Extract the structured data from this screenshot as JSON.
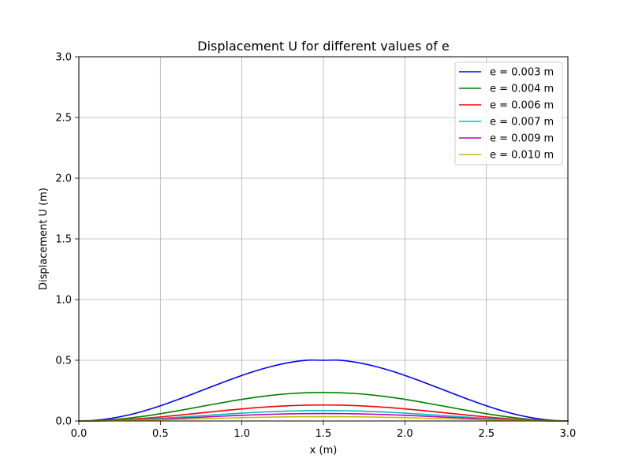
{
  "chart_data": {
    "type": "line",
    "title": "Displacement U for different values of e",
    "xlabel": "x (m)",
    "ylabel": "Displacement U (m)",
    "xlim": [
      0,
      3
    ],
    "ylim": [
      0,
      3
    ],
    "x_ticks": [
      "0.0",
      "0.5",
      "1.0",
      "1.5",
      "2.0",
      "2.5",
      "3.0"
    ],
    "y_ticks": [
      "0.0",
      "0.5",
      "1.0",
      "1.5",
      "2.0",
      "2.5",
      "3.0"
    ],
    "grid": true,
    "legend_position": "top-right",
    "x": [
      0,
      0.1,
      0.2,
      0.3,
      0.4,
      0.5,
      0.6,
      0.7,
      0.8,
      0.9,
      1.0,
      1.1,
      1.2,
      1.3,
      1.4,
      1.5,
      1.6,
      1.7,
      1.8,
      1.9,
      2.0,
      2.1,
      2.2,
      2.3,
      2.4,
      2.5,
      2.6,
      2.7,
      2.8,
      2.9,
      3.0
    ],
    "series": [
      {
        "name": "e = 0.003 m",
        "color": "#0000ff",
        "values": [
          0,
          0.0054,
          0.0216,
          0.0477,
          0.0827,
          0.125,
          0.1727,
          0.2236,
          0.2755,
          0.326,
          0.375,
          0.4186,
          0.4552,
          0.4831,
          0.5006,
          0.5,
          0.5006,
          0.4831,
          0.4552,
          0.4186,
          0.375,
          0.326,
          0.2755,
          0.2236,
          0.1727,
          0.125,
          0.0827,
          0.0477,
          0.0216,
          0.0054,
          0
        ]
      },
      {
        "name": "e = 0.004 m",
        "color": "#008000",
        "values": [
          0,
          0.0025,
          0.0103,
          0.0228,
          0.0395,
          0.0597,
          0.0824,
          0.1067,
          0.1315,
          0.1556,
          0.1781,
          0.1979,
          0.214,
          0.2256,
          0.2325,
          0.2348,
          0.2325,
          0.2256,
          0.214,
          0.1979,
          0.1781,
          0.1556,
          0.1315,
          0.1067,
          0.0824,
          0.0597,
          0.0395,
          0.0228,
          0.0103,
          0.0025,
          0
        ]
      },
      {
        "name": "e = 0.006 m",
        "color": "#ff0000",
        "values": [
          0,
          0.0014,
          0.0058,
          0.0128,
          0.0221,
          0.0334,
          0.0461,
          0.0597,
          0.0736,
          0.0871,
          0.0997,
          0.1108,
          0.1198,
          0.1263,
          0.1302,
          0.1315,
          0.1302,
          0.1263,
          0.1198,
          0.1108,
          0.0997,
          0.0871,
          0.0736,
          0.0597,
          0.0461,
          0.0334,
          0.0221,
          0.0128,
          0.0058,
          0.0014,
          0
        ]
      },
      {
        "name": "e = 0.007 m",
        "color": "#00bfbf",
        "values": [
          0,
          0.0009,
          0.0037,
          0.0083,
          0.0143,
          0.0217,
          0.03,
          0.0388,
          0.0478,
          0.0566,
          0.0648,
          0.072,
          0.0778,
          0.0821,
          0.0846,
          0.0854,
          0.0846,
          0.0821,
          0.0778,
          0.072,
          0.0648,
          0.0566,
          0.0478,
          0.0388,
          0.03,
          0.0217,
          0.0143,
          0.0083,
          0.0037,
          0.0009,
          0
        ]
      },
      {
        "name": "e = 0.009 m",
        "color": "#bf00bf",
        "values": [
          0,
          0.0007,
          0.0027,
          0.006,
          0.0103,
          0.0156,
          0.0216,
          0.0279,
          0.0344,
          0.0407,
          0.0466,
          0.0518,
          0.056,
          0.059,
          0.0608,
          0.0614,
          0.0608,
          0.059,
          0.056,
          0.0518,
          0.0466,
          0.0407,
          0.0344,
          0.0279,
          0.0216,
          0.0156,
          0.0103,
          0.006,
          0.0027,
          0.0007,
          0
        ]
      },
      {
        "name": "e = 0.010 m",
        "color": "#bfbf00",
        "values": [
          0,
          0.0004,
          0.0016,
          0.0035,
          0.006,
          0.0091,
          0.0125,
          0.0162,
          0.02,
          0.0236,
          0.027,
          0.03,
          0.0325,
          0.0342,
          0.0353,
          0.0356,
          0.0353,
          0.0342,
          0.0325,
          0.03,
          0.027,
          0.0236,
          0.02,
          0.0162,
          0.0125,
          0.0091,
          0.006,
          0.0035,
          0.0016,
          0.0004,
          0
        ]
      }
    ]
  }
}
